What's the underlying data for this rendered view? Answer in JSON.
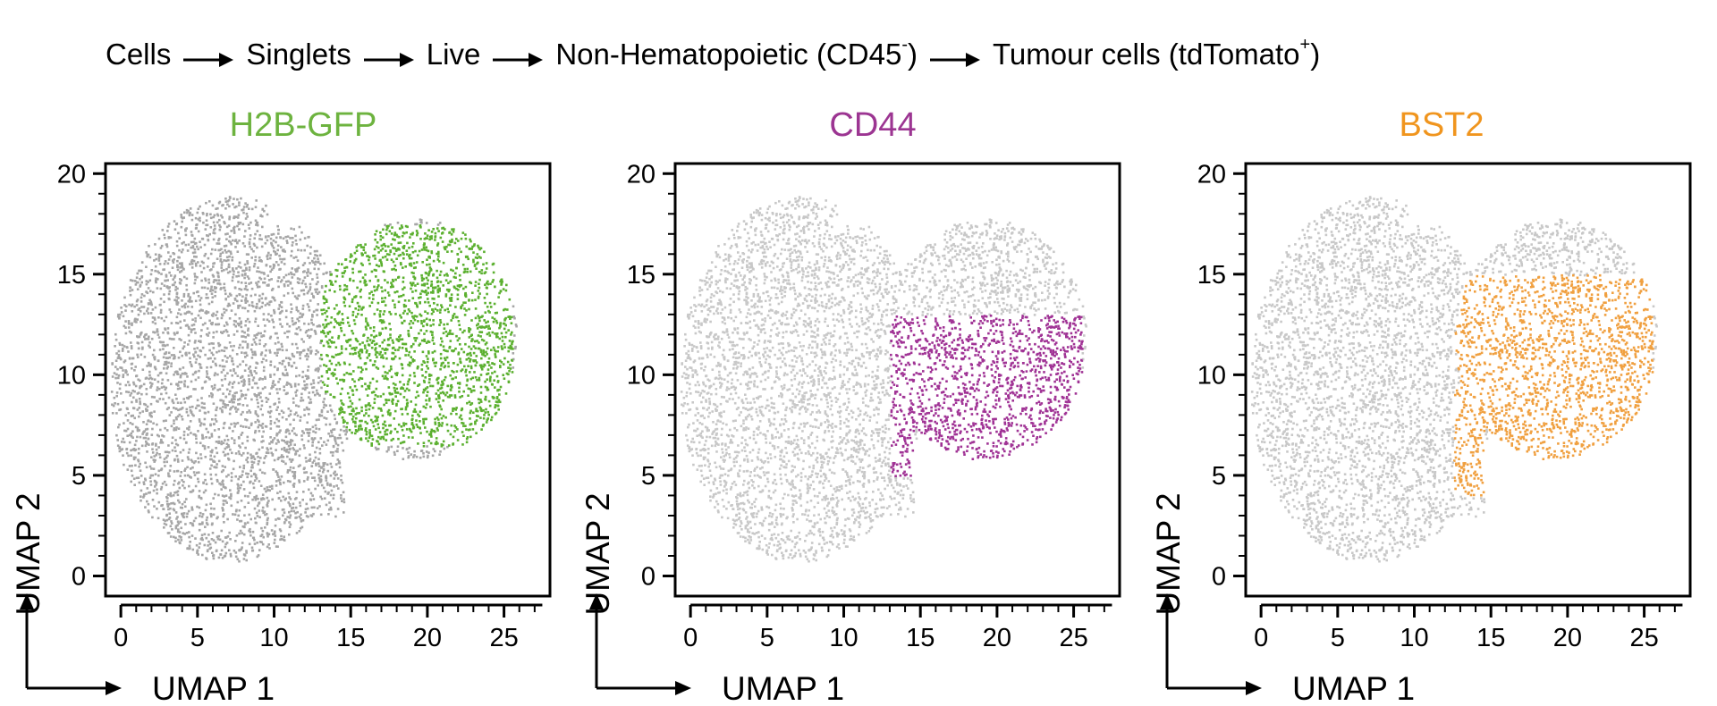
{
  "gating": {
    "steps": [
      {
        "text": "Cells",
        "sup": ""
      },
      {
        "text": "Singlets",
        "sup": ""
      },
      {
        "text": "Live",
        "sup": ""
      },
      {
        "text": "Non-Hematopoietic (CD45",
        "sup": "-",
        "after": ")"
      },
      {
        "text": "Tumour cells (tdTomato",
        "sup": "+",
        "after": ")"
      }
    ]
  },
  "chart_data": [
    {
      "type": "scatter",
      "title": "H2B-GFP",
      "title_color": "#6db33f",
      "xlabel": "UMAP 1",
      "ylabel": "UMAP 2",
      "xlim": [
        -1,
        28
      ],
      "ylim": [
        -1,
        20.5
      ],
      "xticks": [
        0,
        5,
        10,
        15,
        20,
        25
      ],
      "yticks": [
        0,
        5,
        10,
        15,
        20
      ],
      "background_color": "#a6a6a6",
      "highlight_color": "#5cb030",
      "highlight_region": {
        "x_range": [
          13,
          25.5
        ],
        "y_range": [
          6.5,
          17.5
        ]
      }
    },
    {
      "type": "scatter",
      "title": "CD44",
      "title_color": "#9c3592",
      "xlabel": "UMAP 1",
      "ylabel": "UMAP 2",
      "xlim": [
        -1,
        28
      ],
      "ylim": [
        -1,
        20.5
      ],
      "xticks": [
        0,
        5,
        10,
        15,
        20,
        25
      ],
      "yticks": [
        0,
        5,
        10,
        15,
        20
      ],
      "background_color": "#c8c8c8",
      "highlight_color": "#a03395",
      "highlight_region": {
        "x_range": [
          13,
          25.5
        ],
        "y_range": [
          5,
          13
        ]
      }
    },
    {
      "type": "scatter",
      "title": "BST2",
      "title_color": "#f0951e",
      "xlabel": "UMAP 1",
      "ylabel": "UMAP 2",
      "xlim": [
        -1,
        28
      ],
      "ylim": [
        -1,
        20.5
      ],
      "xticks": [
        0,
        5,
        10,
        15,
        20,
        25
      ],
      "yticks": [
        0,
        5,
        10,
        15,
        20
      ],
      "background_color": "#c8c8c8",
      "highlight_color": "#f0a040",
      "highlight_region": {
        "x_range": [
          12.5,
          25.5
        ],
        "y_range": [
          4,
          15
        ]
      }
    }
  ]
}
